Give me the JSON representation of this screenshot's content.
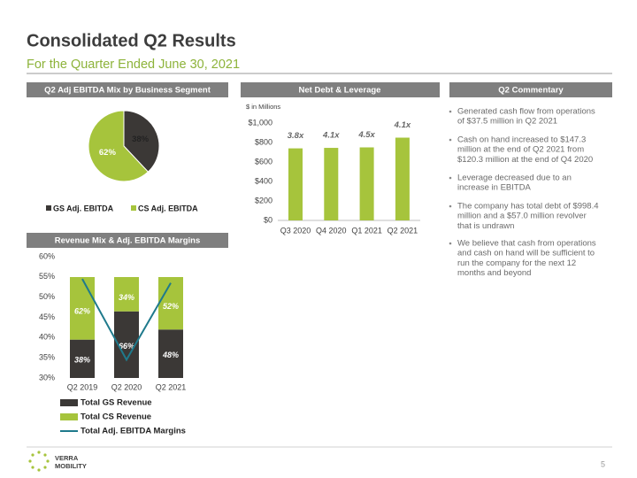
{
  "header": {
    "title": "Consolidated Q2 Results",
    "subtitle": "For the Quarter Ended June 30, 2021"
  },
  "chart_data": [
    {
      "type": "pie",
      "title": "Q2 Adj EBITDA Mix by Business Segment",
      "categories": [
        "GS Adj. EBITDA",
        "CS Adj. EBITDA"
      ],
      "values": [
        38,
        62
      ],
      "value_labels": [
        "38%",
        "62%"
      ],
      "colors": [
        "#3b3836",
        "#a6c43c"
      ]
    },
    {
      "type": "bar",
      "title": "Net Debt & Leverage",
      "ylabel": "$ in Millions",
      "categories": [
        "Q3 2020",
        "Q4 2020",
        "Q1 2021",
        "Q2 2021"
      ],
      "values": [
        740,
        745,
        750,
        850
      ],
      "color": "#a6c43c",
      "annotations": [
        "3.8x",
        "4.1x",
        "4.5x",
        "4.1x"
      ],
      "ylim": [
        0,
        1000
      ],
      "yticks": [
        {
          "value": 0,
          "label": "$0"
        },
        {
          "value": 200,
          "label": "$200"
        },
        {
          "value": 400,
          "label": "$400"
        },
        {
          "value": 600,
          "label": "$600"
        },
        {
          "value": 800,
          "label": "$800"
        },
        {
          "value": 1000,
          "label": "$1,000"
        }
      ]
    },
    {
      "type": "combo",
      "title": "Revenue Mix & Adj. EBITDA Margins",
      "categories": [
        "Q2 2019",
        "Q2 2020",
        "Q2 2021"
      ],
      "series": [
        {
          "name": "Total GS Revenue",
          "color": "#3b3836",
          "values": [
            38,
            66,
            48
          ],
          "value_labels": [
            "38%",
            "66%",
            "48%"
          ]
        },
        {
          "name": "Total CS Revenue",
          "color": "#a6c43c",
          "values": [
            62,
            34,
            52
          ],
          "value_labels": [
            "62%",
            "34%",
            "52%"
          ]
        },
        {
          "name": "Total Adj. EBITDA Margins",
          "color": "#1f7a8c",
          "values": [
            54.5,
            34.5,
            53.5
          ],
          "type": "line"
        }
      ],
      "ylim": [
        30,
        60
      ],
      "yticks": [
        {
          "value": 30,
          "label": "30%"
        },
        {
          "value": 35,
          "label": "35%"
        },
        {
          "value": 40,
          "label": "40%"
        },
        {
          "value": 45,
          "label": "45%"
        },
        {
          "value": 50,
          "label": "50%"
        },
        {
          "value": 55,
          "label": "55%"
        },
        {
          "value": 60,
          "label": "60%"
        }
      ]
    }
  ],
  "commentary": {
    "title": "Q2 Commentary",
    "items": [
      [
        "Generated cash flow from operations",
        "of $37.5 million in Q2 2021"
      ],
      [
        "Cash on hand increased to $147.3",
        "million at the end of Q2 2021 from",
        "$120.3 million at the end of Q4 2020"
      ],
      [
        "Leverage decreased due to an",
        "increase in EBITDA"
      ],
      [
        "The company has total debt of $998.4",
        "million and a $57.0 million revolver",
        "that is undrawn"
      ],
      [
        "We believe that cash from operations",
        "and cash on hand will be sufficient to",
        "run the company for the next 12",
        "months and beyond"
      ]
    ]
  },
  "footer": {
    "logo": [
      "VERRA",
      "MOBILITY"
    ],
    "page": "5"
  }
}
